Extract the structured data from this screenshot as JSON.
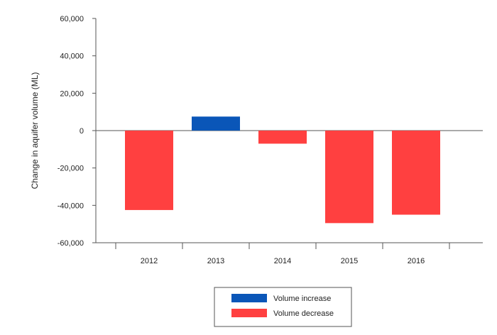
{
  "chart_data": {
    "type": "bar",
    "title": "",
    "xlabel": "",
    "ylabel": "Change in aquifer volume (ML)",
    "ylim": [
      -60000,
      60000
    ],
    "yticks": [
      60000,
      40000,
      20000,
      0,
      -20000,
      -40000,
      -60000
    ],
    "ytick_labels": [
      "60,000",
      "40,000",
      "20,000",
      "0",
      "-20,000",
      "-40,000",
      "-60,000"
    ],
    "categories": [
      "2012",
      "2013",
      "2014",
      "2015",
      "2016"
    ],
    "values": [
      -42500,
      7500,
      -7000,
      -49500,
      -45000
    ],
    "grid": false,
    "legend": {
      "position": "bottom-center",
      "entries": [
        {
          "label": "Volume increase",
          "color": "#0a56b8"
        },
        {
          "label": "Volume decrease",
          "color": "#ff4040"
        }
      ]
    },
    "colors": {
      "increase": "#0a56b8",
      "decrease": "#ff4040"
    }
  }
}
